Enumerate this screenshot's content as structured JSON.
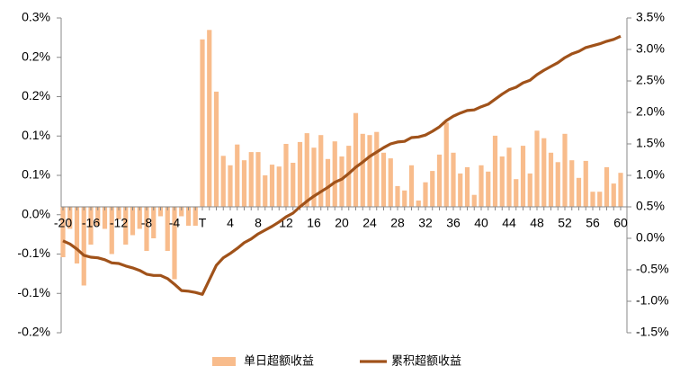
{
  "chart_data": {
    "type": "bar",
    "categories": [
      "-20",
      null,
      null,
      null,
      "-16",
      null,
      null,
      null,
      "-12",
      null,
      null,
      null,
      "-8",
      null,
      null,
      null,
      "-4",
      null,
      null,
      null,
      "T",
      null,
      null,
      null,
      "4",
      null,
      null,
      null,
      "8",
      null,
      null,
      null,
      "12",
      null,
      null,
      null,
      "16",
      null,
      null,
      null,
      "20",
      null,
      null,
      null,
      "24",
      null,
      null,
      null,
      "28",
      null,
      null,
      null,
      "32",
      null,
      null,
      null,
      "36",
      null,
      null,
      null,
      "40",
      null,
      null,
      null,
      "44",
      null,
      null,
      null,
      "48",
      null,
      null,
      null,
      "52",
      null,
      null,
      null,
      "56",
      null,
      null,
      null,
      "60"
    ],
    "series": [
      {
        "name": "单日超额收益",
        "type": "bar",
        "color": "#f8bc8c",
        "values": [
          -0.08,
          -0.035,
          -0.09,
          -0.125,
          -0.06,
          -0.03,
          -0.035,
          -0.075,
          -0.02,
          -0.06,
          -0.045,
          -0.035,
          -0.07,
          -0.05,
          -0.015,
          -0.07,
          -0.115,
          -0.015,
          -0.03,
          -0.03,
          0.266,
          0.281,
          0.183,
          0.081,
          0.066,
          0.099,
          0.074,
          0.087,
          0.087,
          0.05,
          0.067,
          0.064,
          0.1,
          0.07,
          0.103,
          0.117,
          0.094,
          0.114,
          0.076,
          0.104,
          0.08,
          0.097,
          0.149,
          0.116,
          0.114,
          0.119,
          0.086,
          0.077,
          0.033,
          0.026,
          0.066,
          0.01,
          0.039,
          0.057,
          0.083,
          0.134,
          0.086,
          0.053,
          0.063,
          0.019,
          0.066,
          0.056,
          0.113,
          0.08,
          0.094,
          0.044,
          0.097,
          0.053,
          0.121,
          0.109,
          0.086,
          0.071,
          0.116,
          0.074,
          0.046,
          0.073,
          0.024,
          0.024,
          0.063,
          0.037,
          0.054
        ]
      },
      {
        "name": "累积超额收益",
        "type": "line",
        "axis": "y2",
        "color": "#a0521a",
        "values": [
          -0.04,
          -0.09,
          -0.17,
          -0.27,
          -0.3,
          -0.31,
          -0.34,
          -0.39,
          -0.4,
          -0.44,
          -0.47,
          -0.51,
          -0.57,
          -0.59,
          -0.59,
          -0.64,
          -0.73,
          -0.83,
          -0.84,
          -0.86,
          -0.89,
          -0.66,
          -0.43,
          -0.31,
          -0.24,
          -0.16,
          -0.07,
          -0.01,
          0.07,
          0.13,
          0.19,
          0.26,
          0.34,
          0.4,
          0.5,
          0.59,
          0.67,
          0.74,
          0.81,
          0.89,
          0.94,
          1.03,
          1.13,
          1.21,
          1.3,
          1.37,
          1.44,
          1.5,
          1.53,
          1.54,
          1.6,
          1.61,
          1.64,
          1.7,
          1.77,
          1.87,
          1.94,
          1.99,
          2.03,
          2.04,
          2.09,
          2.13,
          2.21,
          2.29,
          2.36,
          2.4,
          2.47,
          2.51,
          2.6,
          2.67,
          2.73,
          2.79,
          2.87,
          2.93,
          2.97,
          3.03,
          3.06,
          3.09,
          3.13,
          3.16,
          3.21
        ]
      }
    ],
    "ylim": [
      -0.2,
      0.3
    ],
    "yticks": [
      {
        "value": 0.3,
        "label": "0.3%"
      },
      {
        "value": 0.2375,
        "label": "0.2%"
      },
      {
        "value": 0.175,
        "label": "0.2%"
      },
      {
        "value": 0.1125,
        "label": "0.1%"
      },
      {
        "value": 0.05,
        "label": "0.1%"
      },
      {
        "value": -0.0125,
        "label": "0.0%"
      },
      {
        "value": -0.075,
        "label": "-0.1%"
      },
      {
        "value": -0.1375,
        "label": "-0.1%"
      },
      {
        "value": -0.2,
        "label": "-0.2%"
      }
    ],
    "y2lim": [
      -1.5,
      3.5
    ],
    "y2ticks": [
      {
        "value": 3.5,
        "label": "3.5%"
      },
      {
        "value": 3,
        "label": "3.0%"
      },
      {
        "value": 2.5,
        "label": "2.5%"
      },
      {
        "value": 2,
        "label": "2.0%"
      },
      {
        "value": 1.5,
        "label": "1.5%"
      },
      {
        "value": 1,
        "label": "1.0%"
      },
      {
        "value": 0.5,
        "label": "0.5%"
      },
      {
        "value": 0,
        "label": "0.0%"
      },
      {
        "value": -0.5,
        "label": "-0.5%"
      },
      {
        "value": -1,
        "label": "-1.0%"
      },
      {
        "value": -1.5,
        "label": "-1.5%"
      }
    ],
    "legend": "bottom"
  }
}
